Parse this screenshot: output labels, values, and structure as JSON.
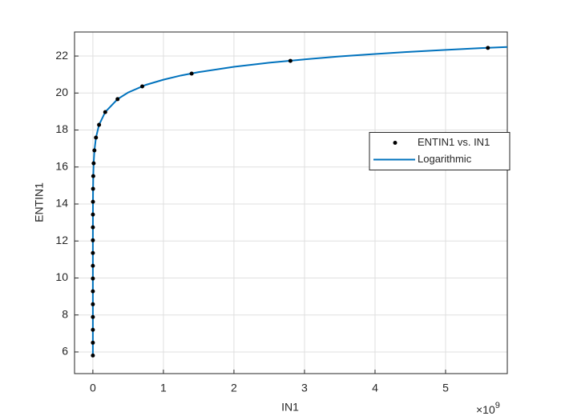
{
  "chart_data": {
    "type": "scatter_fit",
    "xlabel": "IN1",
    "ylabel": "ENTIN1",
    "x_multiplier": {
      "base": "×10",
      "exponent": "9"
    },
    "xlim": [
      -0.26,
      5.875
    ],
    "ylim": [
      4.83,
      23.3
    ],
    "xticks": [
      0,
      1,
      2,
      3,
      4,
      5
    ],
    "yticks": [
      6,
      8,
      10,
      12,
      14,
      16,
      18,
      20,
      22
    ],
    "grid": true,
    "legend_location": "east",
    "series": [
      {
        "name": "ENTIN1 vs. IN1",
        "kind": "points",
        "color": "#000000",
        "x": [
          3.34e-07,
          6.68e-07,
          1.34e-06,
          2.67e-06,
          5.34e-06,
          1.07e-05,
          2.14e-05,
          4.27e-05,
          8.54e-05,
          0.000171,
          0.000342,
          0.000684,
          0.00137,
          0.00273,
          0.00547,
          0.0109,
          0.021875,
          0.04375,
          0.0875,
          0.175,
          0.35,
          0.7,
          1.4,
          2.8,
          5.6
        ],
        "values": [
          5.81,
          6.5,
          7.2,
          7.89,
          8.58,
          9.28,
          9.97,
          10.66,
          11.35,
          12.04,
          12.74,
          13.43,
          14.12,
          14.82,
          15.51,
          16.2,
          16.9,
          17.59,
          18.28,
          18.97,
          19.67,
          20.36,
          21.05,
          21.74,
          22.44
        ]
      },
      {
        "name": "Logarithmic",
        "kind": "line",
        "color": "#0072bd",
        "x": [
          3.34e-07,
          6.68e-07,
          1.34e-06,
          2.67e-06,
          5.34e-06,
          1.07e-05,
          2.14e-05,
          4.27e-05,
          8.54e-05,
          0.000171,
          0.000342,
          0.000684,
          0.00137,
          0.00273,
          0.00547,
          0.0109,
          0.021875,
          0.04375,
          0.0875,
          0.175,
          0.35,
          0.5,
          0.75,
          1,
          1.25,
          1.5,
          2,
          2.5,
          3,
          3.5,
          4,
          4.5,
          5,
          5.5,
          5.875
        ],
        "values": [
          5.81,
          6.5,
          7.2,
          7.89,
          8.58,
          9.28,
          9.97,
          10.66,
          11.35,
          12.04,
          12.74,
          13.43,
          14.12,
          14.82,
          15.51,
          16.2,
          16.9,
          17.59,
          18.28,
          18.97,
          19.67,
          20.03,
          20.44,
          20.72,
          20.95,
          21.13,
          21.42,
          21.64,
          21.82,
          21.98,
          22.11,
          22.23,
          22.33,
          22.43,
          22.49
        ]
      }
    ]
  }
}
